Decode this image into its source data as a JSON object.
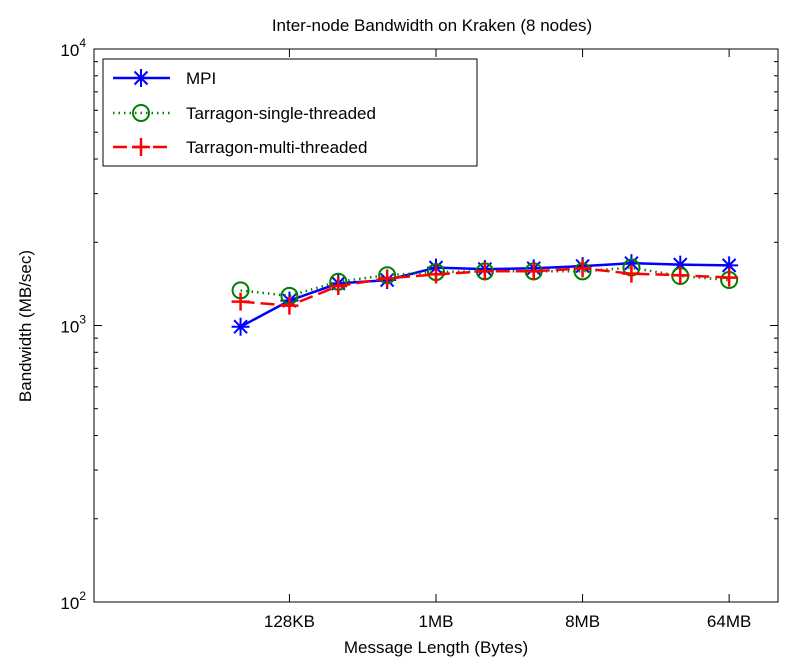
{
  "chart_data": {
    "type": "line",
    "title": "Inter-node Bandwidth on Kraken (8 nodes)",
    "xlabel": "Message Length (Bytes)",
    "ylabel": "Bandwidth (MB/sec)",
    "x_scale": "log2",
    "y_scale": "log10",
    "xlim": [
      8192,
      134217728
    ],
    "ylim": [
      100,
      10000
    ],
    "x_ticks": [
      {
        "value": 131072,
        "label": "128KB"
      },
      {
        "value": 1048576,
        "label": "1MB"
      },
      {
        "value": 8388608,
        "label": "8MB"
      },
      {
        "value": 67108864,
        "label": "64MB"
      }
    ],
    "y_ticks": [
      {
        "value": 100,
        "base": "10",
        "exp": "2"
      },
      {
        "value": 1000,
        "base": "10",
        "exp": "3"
      },
      {
        "value": 10000,
        "base": "10",
        "exp": "4"
      }
    ],
    "grid": false,
    "legend_position": "top-left",
    "x": [
      65536,
      131072,
      262144,
      524288,
      1048576,
      2097152,
      4194304,
      8388608,
      16777216,
      33554432,
      67108864
    ],
    "series": [
      {
        "name": "MPI",
        "color": "#0000ff",
        "marker": "asterisk",
        "line": "solid",
        "values": [
          990,
          1230,
          1420,
          1460,
          1620,
          1600,
          1610,
          1640,
          1680,
          1660,
          1650
        ]
      },
      {
        "name": "Tarragon-single-threaded",
        "color": "#008000",
        "marker": "circle",
        "line": "dotted",
        "values": [
          1340,
          1280,
          1440,
          1520,
          1560,
          1570,
          1570,
          1570,
          1620,
          1510,
          1460
        ]
      },
      {
        "name": "Tarragon-multi-threaded",
        "color": "#ff0000",
        "marker": "plus",
        "line": "dashed",
        "values": [
          1220,
          1180,
          1390,
          1480,
          1530,
          1570,
          1570,
          1610,
          1540,
          1520,
          1490
        ]
      }
    ]
  }
}
